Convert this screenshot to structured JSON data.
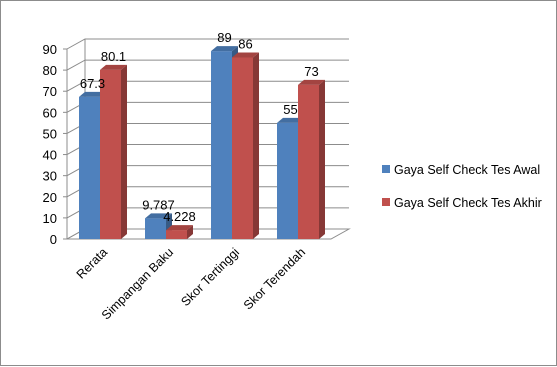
{
  "chart_data": {
    "type": "bar",
    "style": "3d-clustered-column",
    "categories": [
      "Rerata",
      "Simpangan Baku",
      "Skor Tertinggi",
      "Skor Terendah"
    ],
    "series": [
      {
        "name": "Gaya Self Check Tes Awal",
        "values": [
          67.3,
          9.787,
          89,
          55
        ],
        "labels": [
          "67.3",
          "9.787",
          "89",
          "55"
        ],
        "color": "#4f81bd"
      },
      {
        "name": "Gaya Self Check Tes Akhir",
        "values": [
          80.1,
          4.228,
          86,
          73
        ],
        "labels": [
          "80.1",
          "4.228",
          "86",
          "73"
        ],
        "color": "#c0504d"
      }
    ],
    "ylim": [
      0,
      90
    ],
    "yticks": [
      0,
      10,
      20,
      30,
      40,
      50,
      60,
      70,
      80,
      90
    ],
    "grid": true,
    "legend_position": "right",
    "title": "",
    "xlabel": "",
    "ylabel": ""
  }
}
